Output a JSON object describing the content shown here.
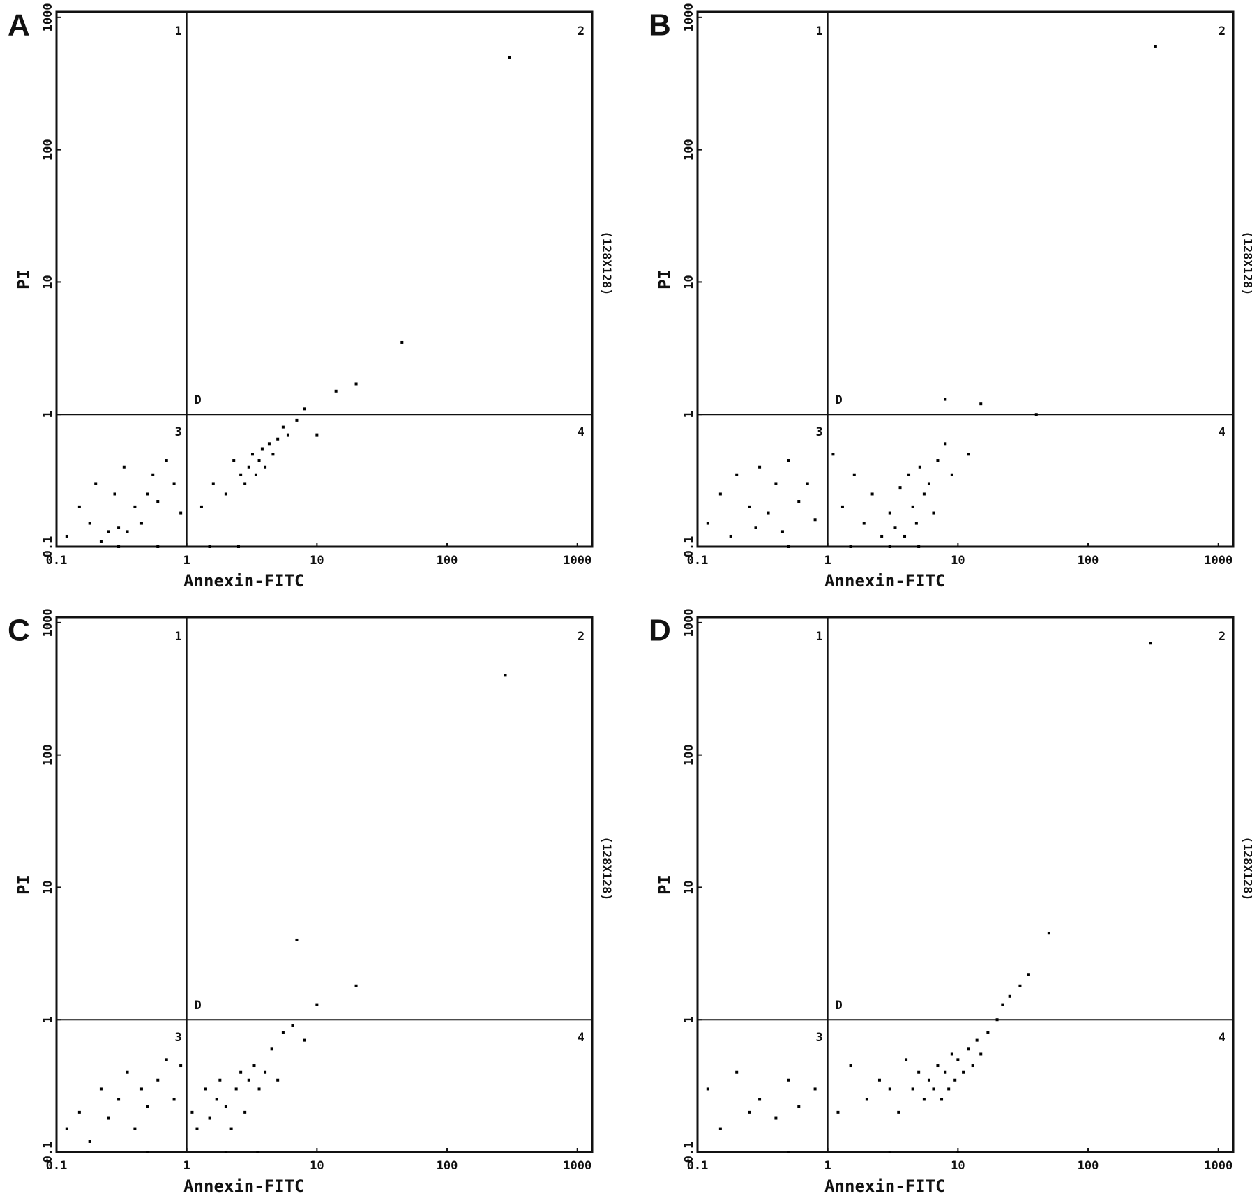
{
  "chart_data": [
    {
      "type": "scatter",
      "panel_label": "A",
      "xlabel": "Annexin-FITC",
      "ylabel": "PI",
      "side_note": "(128X128)",
      "gate_label": "D",
      "quadrant_labels": [
        "1",
        "2",
        "3",
        "4"
      ],
      "quadrant_x": 1,
      "quadrant_y": 1,
      "xscale": "log",
      "yscale": "log",
      "xlim": [
        0.1,
        1300
      ],
      "ylim": [
        0.1,
        1100
      ],
      "xticks": [
        0.1,
        1,
        10,
        100,
        1000
      ],
      "yticks": [
        0.1,
        1,
        10,
        100,
        1000
      ],
      "color": "#000000",
      "x": [
        0.12,
        0.15,
        0.18,
        0.2,
        0.22,
        0.25,
        0.28,
        0.3,
        0.33,
        0.35,
        0.4,
        0.45,
        0.5,
        0.55,
        0.6,
        0.7,
        0.8,
        0.9,
        1.3,
        1.6,
        2.0,
        2.3,
        2.6,
        2.8,
        3.0,
        3.2,
        3.4,
        3.6,
        3.8,
        4.0,
        4.3,
        4.6,
        5.0,
        5.5,
        6.0,
        7.0,
        8.0,
        10,
        14,
        20,
        45,
        300,
        0.3,
        0.6,
        1.5,
        2.5
      ],
      "values": [
        0.12,
        0.2,
        0.15,
        0.3,
        0.11,
        0.13,
        0.25,
        0.14,
        0.4,
        0.13,
        0.2,
        0.15,
        0.25,
        0.35,
        0.22,
        0.45,
        0.3,
        0.18,
        0.2,
        0.3,
        0.25,
        0.45,
        0.35,
        0.3,
        0.4,
        0.5,
        0.35,
        0.45,
        0.55,
        0.4,
        0.6,
        0.5,
        0.65,
        0.8,
        0.7,
        0.9,
        1.1,
        0.7,
        1.5,
        1.7,
        3.5,
        500,
        0.1,
        0.1,
        0.1,
        0.1
      ]
    },
    {
      "type": "scatter",
      "panel_label": "B",
      "xlabel": "Annexin-FITC",
      "ylabel": "PI",
      "side_note": "(128X128)",
      "gate_label": "D",
      "quadrant_labels": [
        "1",
        "2",
        "3",
        "4"
      ],
      "quadrant_x": 1,
      "quadrant_y": 1,
      "xscale": "log",
      "yscale": "log",
      "xlim": [
        0.1,
        1300
      ],
      "ylim": [
        0.1,
        1100
      ],
      "xticks": [
        0.1,
        1,
        10,
        100,
        1000
      ],
      "yticks": [
        0.1,
        1,
        10,
        100,
        1000
      ],
      "color": "#000000",
      "x": [
        0.12,
        0.15,
        0.18,
        0.2,
        0.25,
        0.28,
        0.3,
        0.35,
        0.4,
        0.45,
        0.5,
        0.6,
        0.7,
        0.8,
        1.1,
        1.3,
        1.6,
        1.9,
        2.2,
        2.6,
        3.0,
        3.3,
        3.6,
        3.9,
        4.2,
        4.5,
        4.8,
        5.1,
        5.5,
        6.0,
        6.5,
        7.0,
        8.0,
        9.0,
        12,
        8.0,
        15,
        40,
        330,
        0.5,
        1.5,
        3.0,
        5.0
      ],
      "values": [
        0.15,
        0.25,
        0.12,
        0.35,
        0.2,
        0.14,
        0.4,
        0.18,
        0.3,
        0.13,
        0.45,
        0.22,
        0.3,
        0.16,
        0.5,
        0.2,
        0.35,
        0.15,
        0.25,
        0.12,
        0.18,
        0.14,
        0.28,
        0.12,
        0.35,
        0.2,
        0.15,
        0.4,
        0.25,
        0.3,
        0.18,
        0.45,
        0.6,
        0.35,
        0.5,
        1.3,
        1.2,
        1.0,
        600,
        0.1,
        0.1,
        0.1,
        0.1
      ]
    },
    {
      "type": "scatter",
      "panel_label": "C",
      "xlabel": "Annexin-FITC",
      "ylabel": "PI",
      "side_note": "(128X128)",
      "gate_label": "D",
      "quadrant_labels": [
        "1",
        "2",
        "3",
        "4"
      ],
      "quadrant_x": 1,
      "quadrant_y": 1,
      "xscale": "log",
      "yscale": "log",
      "xlim": [
        0.1,
        1300
      ],
      "ylim": [
        0.1,
        1100
      ],
      "xticks": [
        0.1,
        1,
        10,
        100,
        1000
      ],
      "yticks": [
        0.1,
        1,
        10,
        100,
        1000
      ],
      "color": "#000000",
      "x": [
        0.12,
        0.15,
        0.18,
        0.22,
        0.25,
        0.3,
        0.35,
        0.4,
        0.45,
        0.5,
        0.6,
        0.7,
        0.8,
        0.9,
        1.1,
        1.2,
        1.4,
        1.5,
        1.7,
        1.8,
        2.0,
        2.2,
        2.4,
        2.6,
        2.8,
        3.0,
        3.3,
        3.6,
        4.0,
        4.5,
        5.0,
        5.5,
        6.5,
        8.0,
        10,
        7.0,
        20,
        280,
        0.5,
        2.0,
        3.5
      ],
      "values": [
        0.15,
        0.2,
        0.12,
        0.3,
        0.18,
        0.25,
        0.4,
        0.15,
        0.3,
        0.22,
        0.35,
        0.5,
        0.25,
        0.45,
        0.2,
        0.15,
        0.3,
        0.18,
        0.25,
        0.35,
        0.22,
        0.15,
        0.3,
        0.4,
        0.2,
        0.35,
        0.45,
        0.3,
        0.4,
        0.6,
        0.35,
        0.8,
        0.9,
        0.7,
        1.3,
        4.0,
        1.8,
        400,
        0.1,
        0.1,
        0.1
      ]
    },
    {
      "type": "scatter",
      "panel_label": "D",
      "xlabel": "Annexin-FITC",
      "ylabel": "PI",
      "side_note": "(128X128)",
      "gate_label": "D",
      "quadrant_labels": [
        "1",
        "2",
        "3",
        "4"
      ],
      "quadrant_x": 1,
      "quadrant_y": 1,
      "xscale": "log",
      "yscale": "log",
      "xlim": [
        0.1,
        1300
      ],
      "ylim": [
        0.1,
        1100
      ],
      "xticks": [
        0.1,
        1,
        10,
        100,
        1000
      ],
      "yticks": [
        0.1,
        1,
        10,
        100,
        1000
      ],
      "color": "#000000",
      "x": [
        0.12,
        0.15,
        0.2,
        0.25,
        0.3,
        0.4,
        0.5,
        0.6,
        0.8,
        1.2,
        1.5,
        2.0,
        2.5,
        3.0,
        3.5,
        4.0,
        4.5,
        5.0,
        5.5,
        6.0,
        6.5,
        7.0,
        7.5,
        8.0,
        8.5,
        9.0,
        9.5,
        10,
        11,
        12,
        13,
        14,
        15,
        17,
        20,
        22,
        25,
        30,
        35,
        50,
        300,
        0.5,
        3.0,
        10
      ],
      "values": [
        0.3,
        0.15,
        0.4,
        0.2,
        0.25,
        0.18,
        0.35,
        0.22,
        0.3,
        0.2,
        0.45,
        0.25,
        0.35,
        0.3,
        0.2,
        0.5,
        0.3,
        0.4,
        0.25,
        0.35,
        0.3,
        0.45,
        0.25,
        0.4,
        0.3,
        0.55,
        0.35,
        0.5,
        0.4,
        0.6,
        0.45,
        0.7,
        0.55,
        0.8,
        1.0,
        1.3,
        1.5,
        1.8,
        2.2,
        4.5,
        700,
        0.1,
        0.1,
        0.1
      ]
    }
  ]
}
